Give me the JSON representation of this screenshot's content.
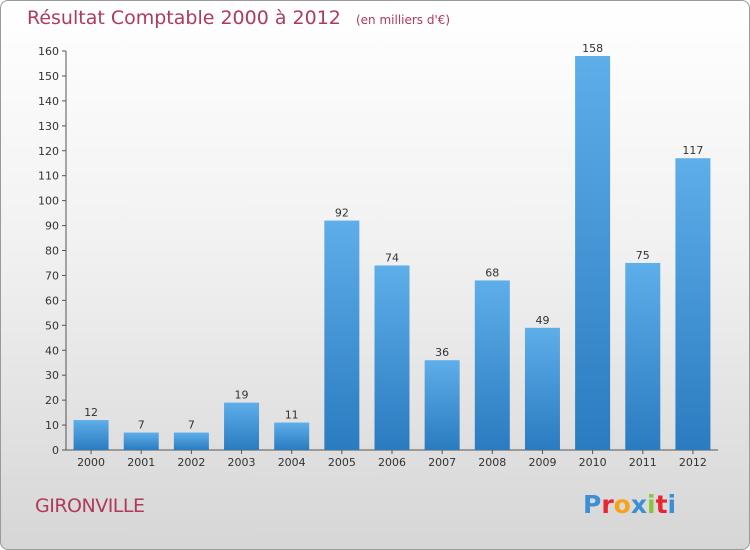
{
  "title": "Résultat Comptable 2000 à 2012",
  "subtitle": "(en milliers d'€)",
  "commune": "GIRONVILLE",
  "brand": {
    "letters": [
      "P",
      "r",
      "o",
      "x",
      "i",
      "t",
      "i"
    ],
    "colors": [
      "#3a8fd6",
      "#e8262f",
      "#f5a31a",
      "#3a8fd6",
      "#8bc53f",
      "#e8262f",
      "#3a8fd6"
    ]
  },
  "colors": {
    "bar_light": "#5eaeea",
    "bar_dark": "#2a7bc0",
    "title": "#b03a5a"
  },
  "chart_data": {
    "type": "bar",
    "title": "Résultat Comptable 2000 à 2012",
    "subtitle": "(en milliers d'€)",
    "xlabel": "",
    "ylabel": "",
    "categories": [
      "2000",
      "2001",
      "2002",
      "2003",
      "2004",
      "2005",
      "2006",
      "2007",
      "2008",
      "2009",
      "2010",
      "2011",
      "2012"
    ],
    "values": [
      12,
      7,
      7,
      19,
      11,
      92,
      74,
      36,
      68,
      49,
      158,
      75,
      117
    ],
    "ylim": [
      0,
      160
    ],
    "yticks": [
      0,
      10,
      20,
      30,
      40,
      50,
      60,
      70,
      80,
      90,
      100,
      110,
      120,
      130,
      140,
      150,
      160
    ],
    "grid": false,
    "data_labels": true
  }
}
